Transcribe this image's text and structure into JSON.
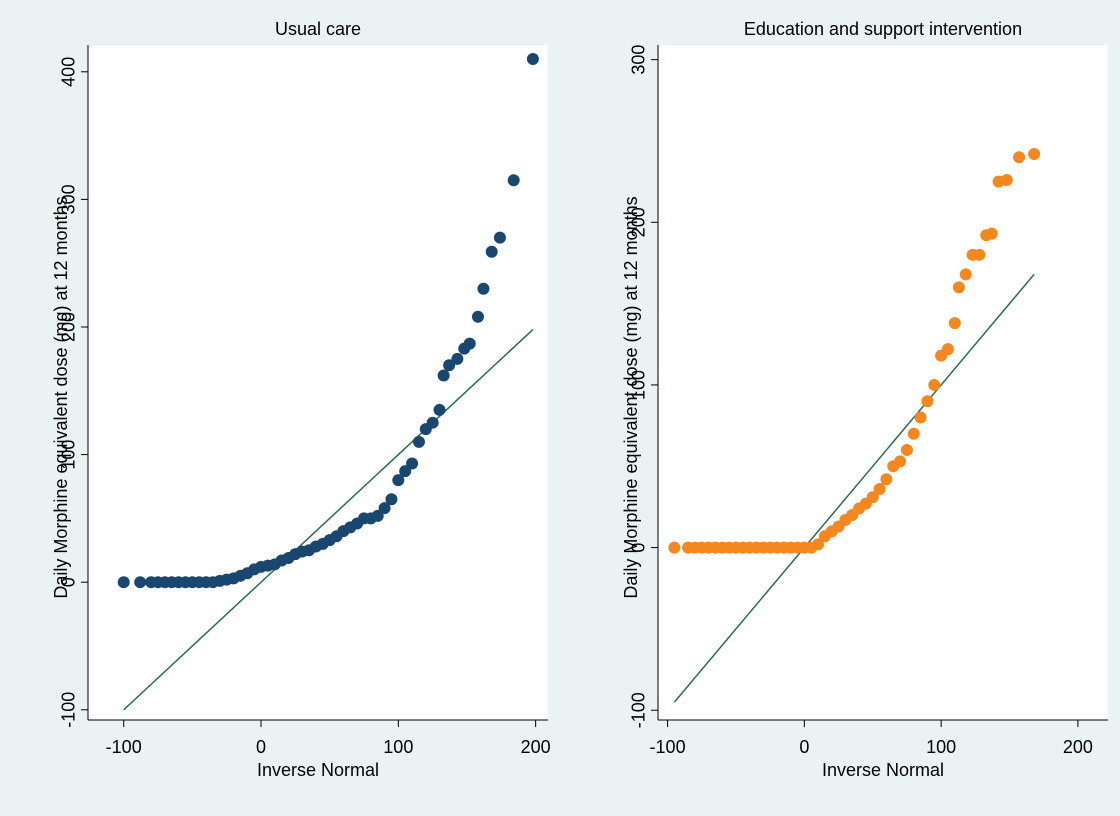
{
  "chart_data": [
    {
      "type": "scatter",
      "title": "Usual care",
      "xlabel": "Inverse Normal",
      "ylabel": "Daily Morphine equivalent dose (mg) at 12 months",
      "xlim": [
        -126,
        209
      ],
      "ylim": [
        -108,
        421
      ],
      "xticks": [
        -100,
        0,
        100,
        200
      ],
      "yticks": [
        -100,
        0,
        100,
        200,
        300,
        400
      ],
      "series": [
        {
          "color": "#1a476f",
          "x": [
            -100,
            -88,
            -80,
            -75,
            -70,
            -65,
            -60,
            -55,
            -50,
            -45,
            -40,
            -35,
            -30,
            -25,
            -20,
            -15,
            -10,
            -5,
            0,
            5,
            10,
            15,
            20,
            25,
            30,
            35,
            40,
            45,
            50,
            55,
            60,
            65,
            70,
            75,
            80,
            85,
            90,
            95,
            100,
            105,
            110,
            115,
            120,
            125,
            130,
            133,
            137,
            143,
            148,
            152,
            158,
            162,
            168,
            174,
            184,
            198
          ],
          "values": [
            0,
            0,
            0,
            0,
            0,
            0,
            0,
            0,
            0,
            0,
            0,
            0,
            1,
            2,
            3,
            5,
            7,
            10,
            12,
            13,
            14,
            17,
            19,
            22,
            24,
            25,
            28,
            30,
            33,
            36,
            40,
            43,
            46,
            50,
            50,
            52,
            58,
            65,
            80,
            87,
            93,
            110,
            120,
            125,
            135,
            162,
            170,
            175,
            183,
            187,
            208,
            230,
            259,
            270,
            315,
            410
          ]
        }
      ],
      "reference_line": {
        "color": "#2f6b4f",
        "x": [
          -100,
          198
        ],
        "y": [
          -100,
          198
        ]
      }
    },
    {
      "type": "scatter",
      "title": "Education and support intervention",
      "xlabel": "Inverse Normal",
      "ylabel": "Daily Morphine equivalent dose (mg) at 12 months",
      "xlim": [
        -107,
        222
      ],
      "ylim": [
        -106,
        309
      ],
      "xticks": [
        -100,
        0,
        100,
        200
      ],
      "yticks": [
        -100,
        0,
        100,
        200,
        300
      ],
      "series": [
        {
          "color": "#f5871f",
          "x": [
            -95,
            -85,
            -80,
            -75,
            -70,
            -65,
            -60,
            -55,
            -50,
            -45,
            -40,
            -35,
            -30,
            -25,
            -20,
            -15,
            -10,
            -5,
            0,
            5,
            10,
            15,
            20,
            25,
            30,
            35,
            40,
            45,
            50,
            55,
            60,
            65,
            70,
            75,
            80,
            85,
            90,
            95,
            100,
            105,
            110,
            113,
            118,
            123,
            128,
            133,
            137,
            142,
            148,
            157,
            168
          ],
          "values": [
            0,
            0,
            0,
            0,
            0,
            0,
            0,
            0,
            0,
            0,
            0,
            0,
            0,
            0,
            0,
            0,
            0,
            0,
            0,
            0,
            2,
            7,
            10,
            13,
            17,
            20,
            24,
            27,
            31,
            36,
            42,
            50,
            53,
            60,
            70,
            80,
            90,
            100,
            118,
            122,
            138,
            160,
            168,
            180,
            180,
            192,
            193,
            225,
            226,
            240,
            242
          ]
        }
      ],
      "reference_line": {
        "color": "#2f6b4f",
        "x": [
          -95,
          168
        ],
        "y": [
          -95,
          168
        ]
      }
    }
  ]
}
